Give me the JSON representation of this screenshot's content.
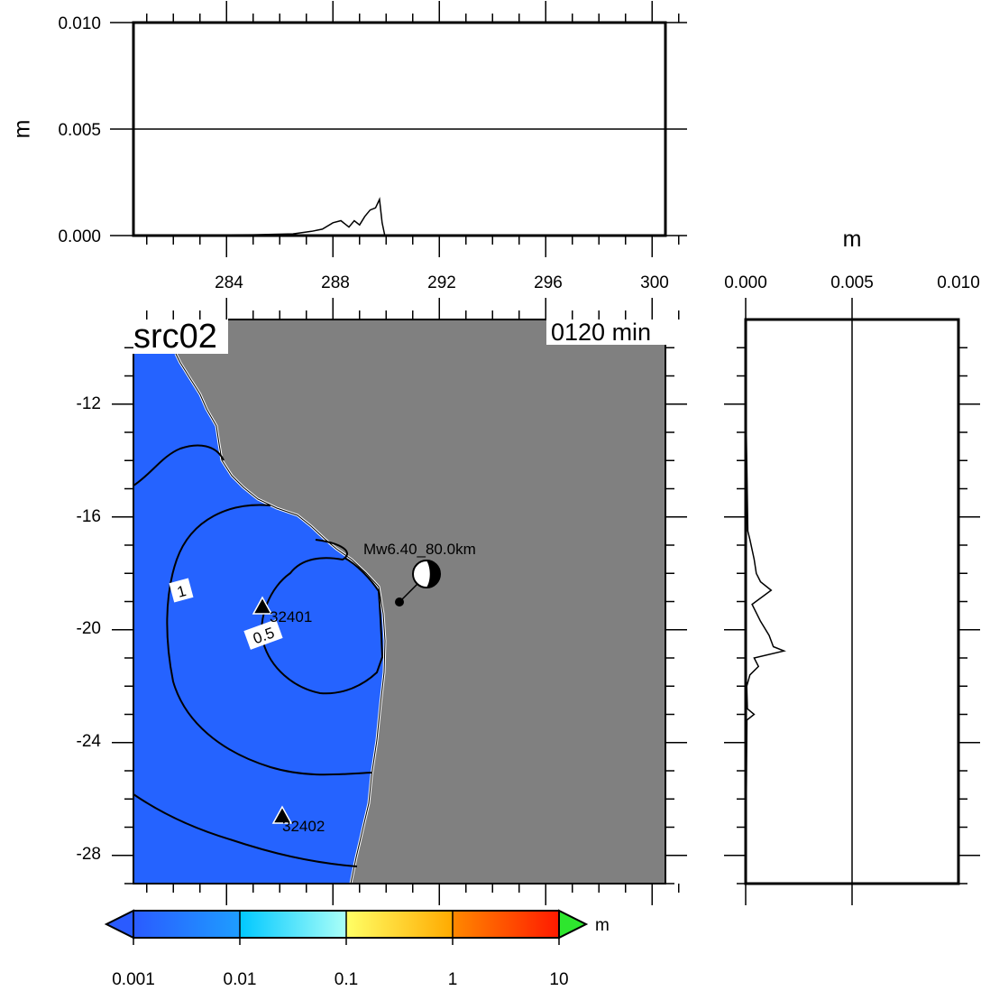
{
  "panel_label": "src02",
  "time_label": "0120 min",
  "units": {
    "top_panel": "m",
    "right_panel": "m",
    "colorbar": "m"
  },
  "top_panel": {
    "yticks": [
      "0.000",
      "0.005",
      "0.010"
    ],
    "xticks": [
      "284",
      "288",
      "292",
      "296",
      "300"
    ]
  },
  "right_panel": {
    "xticks": [
      "0.000",
      "0.005",
      "0.010"
    ]
  },
  "map": {
    "yticks": [
      "-12",
      "-16",
      "-20",
      "-24",
      "-28"
    ],
    "earthquake_label": "Mw6.40_80.0km",
    "stations": [
      {
        "id": "32401"
      },
      {
        "id": "32402"
      }
    ],
    "contour_labels": [
      "1",
      "0.5"
    ],
    "colors": {
      "ocean": "#2563ff",
      "land": "#808080",
      "coast": "#ffffff"
    }
  },
  "colorbar": {
    "ticks": [
      "0.001",
      "0.01",
      "0.1",
      "1",
      "10"
    ],
    "colors": [
      "#2a6cff",
      "#18c6ff",
      "#a6fff6",
      "#fdb800",
      "#ff2a00",
      "#2ee62e"
    ]
  },
  "chart_data": [
    {
      "type": "line",
      "title": "",
      "ylabel": "m",
      "xlim": [
        280.5,
        300.5
      ],
      "ylim": [
        0,
        0.01
      ],
      "x": [
        280.5,
        283,
        285,
        286.5,
        287.2,
        287.6,
        288,
        288.3,
        288.6,
        288.8,
        289.0,
        289.2,
        289.4,
        289.6,
        289.75,
        289.85,
        289.95,
        300.5
      ],
      "y": [
        0,
        2e-05,
        4e-05,
        8e-05,
        0.0002,
        0.0003,
        0.0006,
        0.0007,
        0.0004,
        0.0007,
        0.0005,
        0.0009,
        0.0012,
        0.0013,
        0.0017,
        0.0006,
        0,
        0
      ]
    },
    {
      "type": "line",
      "title": "",
      "xlabel": "m",
      "xlim": [
        0,
        0.01
      ],
      "ylim": [
        -29,
        -9
      ],
      "y": [
        -11.9,
        -13,
        -14,
        -16.5,
        -16.8,
        -17.5,
        -18.0,
        -18.3,
        -18.6,
        -19.1,
        -19.7,
        -20.2,
        -20.6,
        -20.75,
        -21.0,
        -21.3,
        -21.6,
        -22,
        -22.8,
        -23.0,
        -23.2,
        -26,
        -28.5
      ],
      "x": [
        1e-05,
        3e-05,
        5e-05,
        0.0001,
        0.0002,
        0.0004,
        0.0005,
        0.0007,
        0.0012,
        0.0003,
        0.0007,
        0.0011,
        0.0013,
        0.0018,
        0.0004,
        0.0006,
        0.0002,
        5e-05,
        8e-05,
        0.0004,
        6e-05,
        3e-05,
        1e-05
      ]
    }
  ]
}
